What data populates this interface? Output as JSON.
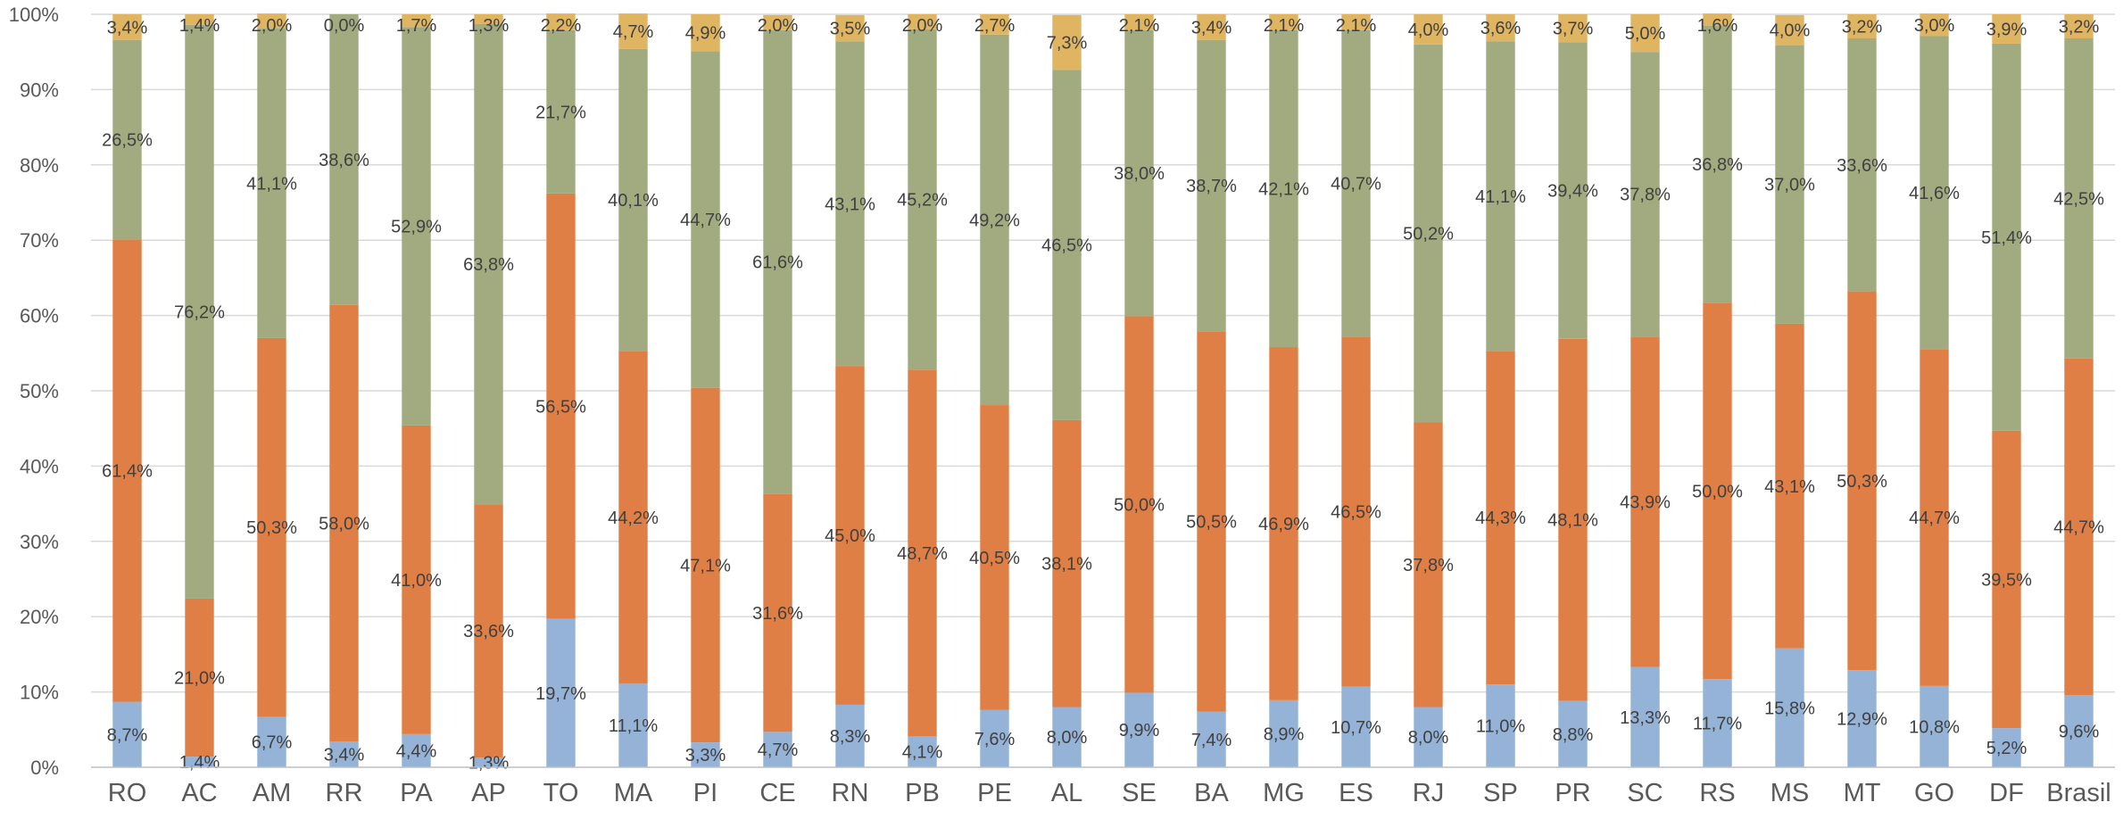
{
  "chart_data": {
    "type": "bar",
    "stacked": true,
    "percent_stacked": true,
    "categories": [
      "RO",
      "AC",
      "AM",
      "RR",
      "PA",
      "AP",
      "TO",
      "MA",
      "PI",
      "CE",
      "RN",
      "PB",
      "PE",
      "AL",
      "SE",
      "BA",
      "MG",
      "ES",
      "RJ",
      "SP",
      "PR",
      "SC",
      "RS",
      "MS",
      "MT",
      "GO",
      "DF",
      "Brasil"
    ],
    "series": [
      {
        "color": "#95b3d7",
        "values": [
          8.7,
          1.4,
          6.7,
          3.4,
          4.4,
          1.3,
          19.7,
          11.1,
          3.3,
          4.7,
          8.3,
          4.1,
          7.6,
          8.0,
          9.9,
          7.4,
          8.9,
          10.7,
          8.0,
          11.0,
          8.8,
          13.3,
          11.7,
          15.8,
          12.9,
          10.8,
          5.2,
          9.6
        ],
        "labels": [
          "8,7%",
          "1,4%",
          "6,7%",
          "3,4%",
          "4,4%",
          "1,3%",
          "19,7%",
          "11,1%",
          "3,3%",
          "4,7%",
          "8,3%",
          "4,1%",
          "7,6%",
          "8,0%",
          "9,9%",
          "7,4%",
          "8,9%",
          "10,7%",
          "8,0%",
          "11,0%",
          "8,8%",
          "13,3%",
          "11,7%",
          "15,8%",
          "12,9%",
          "10,8%",
          "5,2%",
          "9,6%"
        ]
      },
      {
        "color": "#e07f45",
        "values": [
          61.4,
          21.0,
          50.3,
          58.0,
          41.0,
          33.6,
          56.5,
          44.2,
          47.1,
          31.6,
          45.0,
          48.7,
          40.5,
          38.1,
          50.0,
          50.5,
          46.9,
          46.5,
          37.8,
          44.3,
          48.1,
          43.9,
          50.0,
          43.1,
          50.3,
          44.7,
          39.5,
          44.7
        ],
        "labels": [
          "61,4%",
          "21,0%",
          "50,3%",
          "58,0%",
          "41,0%",
          "33,6%",
          "56,5%",
          "44,2%",
          "47,1%",
          "31,6%",
          "45,0%",
          "48,7%",
          "40,5%",
          "38,1%",
          "50,0%",
          "50,5%",
          "46,9%",
          "46,5%",
          "37,8%",
          "44,3%",
          "48,1%",
          "43,9%",
          "50,0%",
          "43,1%",
          "50,3%",
          "44,7%",
          "39,5%",
          "44,7%"
        ]
      },
      {
        "color": "#a2ab80",
        "values": [
          26.5,
          76.2,
          41.1,
          38.6,
          52.9,
          63.8,
          21.7,
          40.1,
          44.7,
          61.6,
          43.1,
          45.2,
          49.2,
          46.5,
          38.0,
          38.7,
          42.1,
          40.7,
          50.2,
          41.1,
          39.4,
          37.8,
          36.8,
          37.0,
          33.6,
          41.6,
          51.4,
          42.5
        ],
        "labels": [
          "26,5%",
          "76,2%",
          "41,1%",
          "38,6%",
          "52,9%",
          "63,8%",
          "21,7%",
          "40,1%",
          "44,7%",
          "61,6%",
          "43,1%",
          "45,2%",
          "49,2%",
          "46,5%",
          "38,0%",
          "38,7%",
          "42,1%",
          "40,7%",
          "50,2%",
          "41,1%",
          "39,4%",
          "37,8%",
          "36,8%",
          "37,0%",
          "33,6%",
          "41,6%",
          "51,4%",
          "42,5%"
        ]
      },
      {
        "color": "#dfb562",
        "values": [
          3.4,
          1.4,
          2.0,
          0.0,
          1.7,
          1.3,
          2.2,
          4.7,
          4.9,
          2.0,
          3.5,
          2.0,
          2.7,
          7.3,
          2.1,
          3.4,
          2.1,
          2.1,
          4.0,
          3.6,
          3.7,
          5.0,
          1.6,
          4.0,
          3.2,
          3.0,
          3.9,
          3.2
        ],
        "labels": [
          "3,4%",
          "1,4%",
          "2,0%",
          "0,0%",
          "1,7%",
          "1,3%",
          "2,2%",
          "4,7%",
          "4,9%",
          "2,0%",
          "3,5%",
          "2,0%",
          "2,7%",
          "7,3%",
          "2,1%",
          "3,4%",
          "2,1%",
          "2,1%",
          "4,0%",
          "3,6%",
          "3,7%",
          "5,0%",
          "1,6%",
          "4,0%",
          "3,2%",
          "3,0%",
          "3,9%",
          "3,2%"
        ]
      }
    ],
    "ylim": [
      0,
      100
    ],
    "yticks": [
      "0%",
      "10%",
      "20%",
      "30%",
      "40%",
      "50%",
      "60%",
      "70%",
      "80%",
      "90%",
      "100%"
    ],
    "grid": true,
    "legend": "none",
    "colors": {
      "grid": "#d9d9d9",
      "axis": "#bfbfbf",
      "tick_text": "#595959",
      "label_text": "#404040"
    }
  }
}
